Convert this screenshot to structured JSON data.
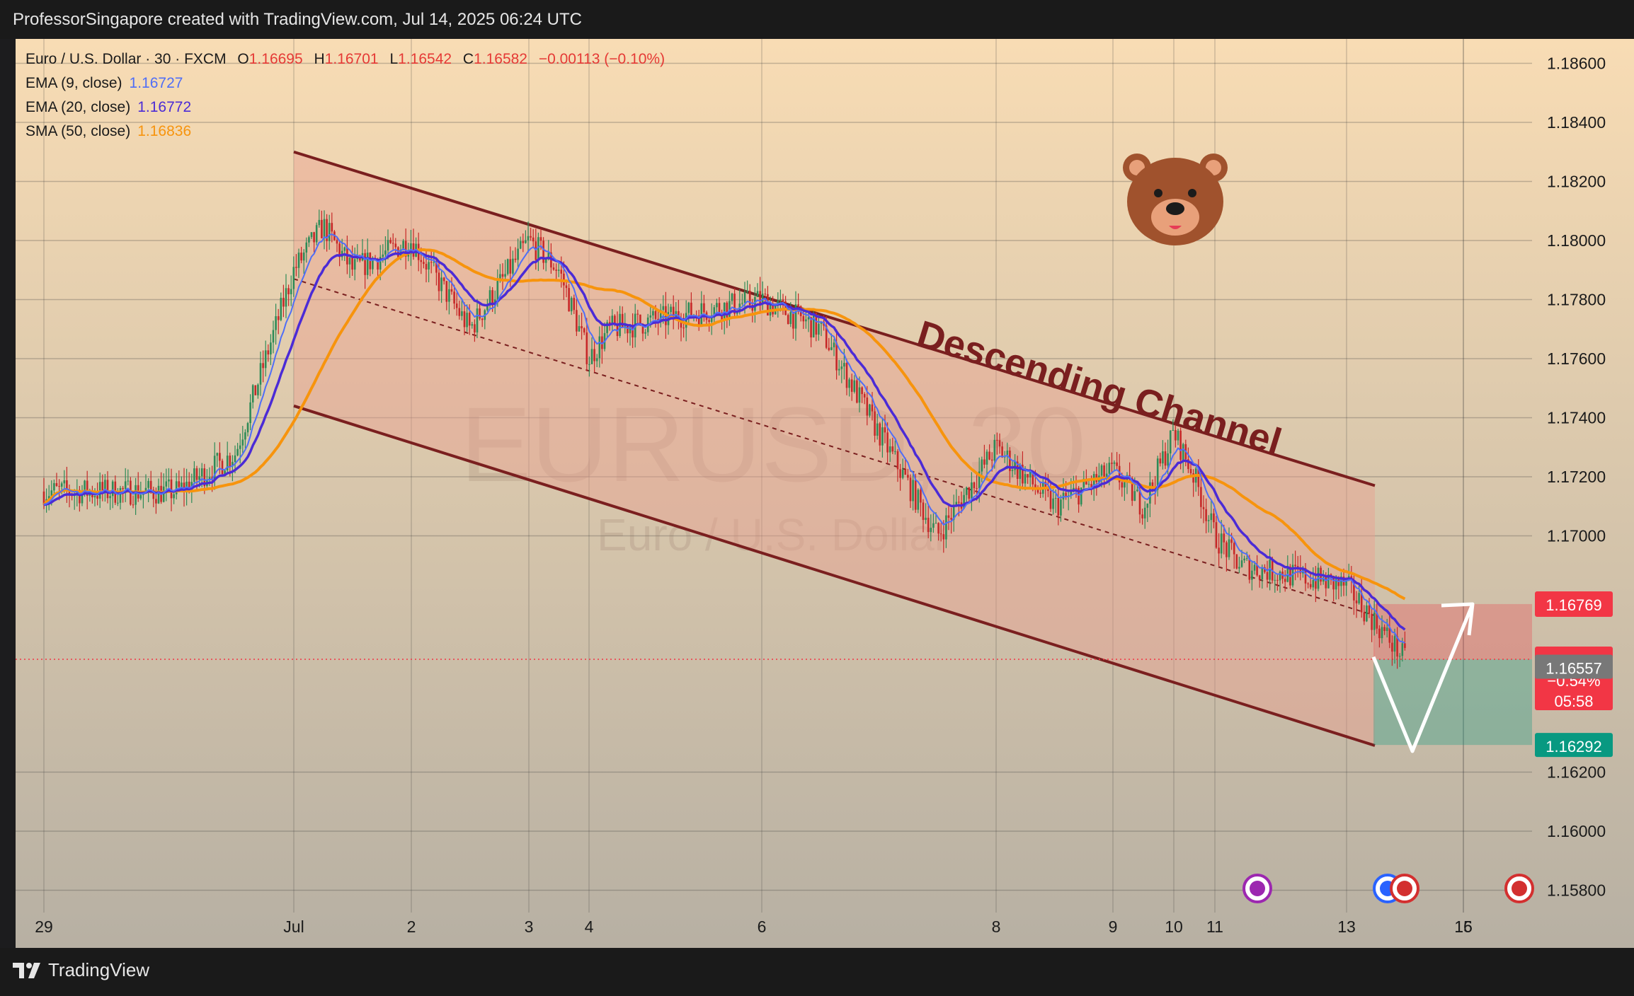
{
  "header": {
    "credit": "ProfessorSingapore created with TradingView.com, Jul 14, 2025 06:24 UTC"
  },
  "footer": {
    "brand": "TradingView"
  },
  "legend": {
    "symbol": "Euro / U.S. Dollar · 30 · FXCM",
    "o_label": "O",
    "o_value": "1.16695",
    "h_label": "H",
    "h_value": "1.16701",
    "l_label": "L",
    "l_value": "1.16542",
    "c_label": "C",
    "c_value": "1.16582",
    "change": "−0.00113 (−0.10%)",
    "ema9_label": "EMA (9, close)",
    "ema9_value": "1.16727",
    "ema20_label": "EMA (20, close)",
    "ema20_value": "1.16772",
    "sma50_label": "SMA (50, close)",
    "sma50_value": "1.16836"
  },
  "watermark": {
    "symbol": "EURUSD, 30",
    "name": "Euro / U.S. Dollar"
  },
  "annotation": {
    "text": "Descending Channel"
  },
  "price_tags": {
    "target": "1.16769",
    "current": "1.16582",
    "current_change": "−0.54%",
    "countdown": "05:58",
    "gray": "1.16557",
    "stop": "1.16292"
  },
  "colors": {
    "background_top": "#f8dcb4",
    "background_bottom": "#b7b0a3",
    "channel_line": "#7a1f1f",
    "channel_fill": "#e9a090",
    "candle_up": "#2e8b57",
    "candle_down": "#c62828",
    "ema9": "#4f6ef7",
    "ema20": "#4b2bd6",
    "sma50": "#f7940d",
    "target_tag": "#f23645",
    "stop_tag": "#089981",
    "gray_tag": "#787878"
  },
  "chart_data": {
    "type": "candlestick",
    "timeframe": "30",
    "x_tick_labels": [
      "29",
      "Jul",
      "2",
      "3",
      "4",
      "6",
      "8",
      "9",
      "10",
      "11",
      "13",
      "15",
      "16"
    ],
    "y_tick_labels": [
      "1.18600",
      "1.18400",
      "1.18200",
      "1.18000",
      "1.17800",
      "1.17600",
      "1.17400",
      "1.17200",
      "1.17000",
      "1.16200",
      "1.16000",
      "1.15800"
    ],
    "ylim": [
      1.1555,
      1.1873
    ],
    "close_path": [
      [
        "06-29",
        1.1715
      ],
      [
        "06-30",
        1.1715
      ],
      [
        "06-30 12:00",
        1.1728
      ],
      [
        "07-01 00:00",
        1.179
      ],
      [
        "07-01 06:00",
        1.1805
      ],
      [
        "07-01 12:00",
        1.179
      ],
      [
        "07-02 00:00",
        1.18
      ],
      [
        "07-02 12:00",
        1.177
      ],
      [
        "07-03 00:00",
        1.18
      ],
      [
        "07-03 12:00",
        1.179
      ],
      [
        "07-04 00:00",
        1.176
      ],
      [
        "07-04 12:00",
        1.177
      ],
      [
        "07-06 00:00",
        1.178
      ],
      [
        "07-06 12:00",
        1.177
      ],
      [
        "07-07 12:00",
        1.17
      ],
      [
        "07-08 00:00",
        1.173
      ],
      [
        "07-08 12:00",
        1.171
      ],
      [
        "07-09 00:00",
        1.1722
      ],
      [
        "07-09 12:00",
        1.171
      ],
      [
        "07-10 00:00",
        1.1735
      ],
      [
        "07-10 12:00",
        1.172
      ],
      [
        "07-11 00:00",
        1.17
      ],
      [
        "07-11 12:00",
        1.169
      ],
      [
        "07-13 00:00",
        1.1683
      ],
      [
        "07-13 12:00",
        1.16582
      ]
    ],
    "ema9": {
      "last": 1.16727
    },
    "ema20": {
      "last": 1.16772
    },
    "sma50": {
      "last": 1.16836
    },
    "channel": {
      "upper": [
        [
          "07-01",
          1.183
        ],
        [
          "07-13",
          1.1717
        ]
      ],
      "lower": [
        [
          "07-01",
          1.1744
        ],
        [
          "07-13",
          1.1629
        ]
      ]
    },
    "projection": {
      "low": 1.1629,
      "target": 1.16769
    },
    "risk_zone": {
      "top": 1.16769,
      "bottom": 1.16582
    },
    "reward_zone": {
      "top": 1.16582,
      "bottom": 1.16292
    }
  }
}
